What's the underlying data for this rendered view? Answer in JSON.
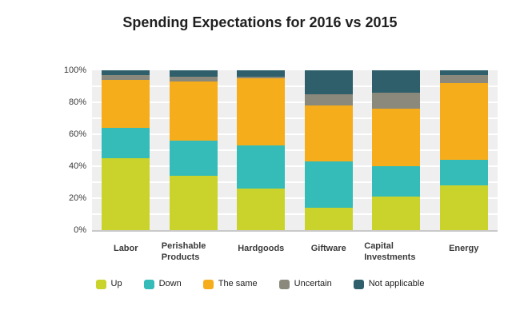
{
  "title": "Spending Expectations for 2016 vs 2015",
  "colors": {
    "plot_background": "#efefef",
    "gridline": "#ffffff",
    "axis_line": "#c9c9c9",
    "title_text": "#1f1f1f",
    "axis_text": "#3a3a3a"
  },
  "y_axis": {
    "tick_labels": [
      "100%",
      "80%",
      "60%",
      "40%",
      "20%",
      "0%"
    ]
  },
  "chart_data": {
    "type": "bar",
    "stacked": true,
    "title": "Spending Expectations for 2016 vs 2015",
    "xlabel": "",
    "ylabel": "",
    "ylim": [
      0,
      100
    ],
    "y_tick_interval": 20,
    "gridlines": "horizontal white lines every 10%, labels every 20%",
    "legend_position": "bottom",
    "categories": [
      "Labor",
      "Perishable Products",
      "Hardgoods",
      "Giftware",
      "Capital Investments",
      "Energy"
    ],
    "series": [
      {
        "name": "Up",
        "color": "#c9d32b",
        "values": [
          45,
          34,
          26,
          14,
          21,
          28
        ]
      },
      {
        "name": "Down",
        "color": "#35bcb8",
        "values": [
          19,
          22,
          27,
          29,
          19,
          16
        ]
      },
      {
        "name": "The same",
        "color": "#f6ad1c",
        "values": [
          30,
          37,
          42,
          35,
          36,
          48
        ]
      },
      {
        "name": "Uncertain",
        "color": "#8a897c",
        "values": [
          3,
          3,
          1,
          7,
          10,
          5
        ]
      },
      {
        "name": "Not applicable",
        "color": "#2e5f6b",
        "values": [
          3,
          4,
          4,
          15,
          14,
          3
        ]
      }
    ]
  }
}
